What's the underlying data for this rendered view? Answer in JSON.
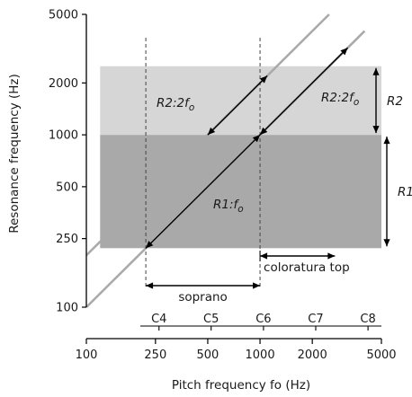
{
  "chart_data": {
    "type": "line",
    "xscale": "log",
    "yscale": "log",
    "xlim": [
      100,
      5000
    ],
    "ylim": [
      100,
      5000
    ],
    "xlabel": "Pitch frequency fo  (Hz)",
    "ylabel": "Resonance frequency  (Hz)",
    "x_ticks": [
      100,
      250,
      500,
      1000,
      2000,
      5000
    ],
    "y_ticks": [
      100,
      250,
      500,
      1000,
      2000,
      5000
    ],
    "notes": [
      {
        "label": "C4",
        "freq": 262
      },
      {
        "label": "C5",
        "freq": 523
      },
      {
        "label": "C6",
        "freq": 1047
      },
      {
        "label": "C7",
        "freq": 2093
      },
      {
        "label": "C8",
        "freq": 4186
      }
    ],
    "regions": [
      {
        "name": "R1",
        "y_range": [
          220,
          1000
        ],
        "x_range": [
          120,
          5000
        ],
        "color": "#a9a9a9"
      },
      {
        "name": "R2",
        "y_range": [
          1000,
          2500
        ],
        "x_range": [
          120,
          5000
        ],
        "color": "#d6d6d6"
      }
    ],
    "lines": [
      {
        "label_pre": "R1:f",
        "label_sub": "o",
        "multiplier": 1,
        "x_range": [
          100,
          4000
        ],
        "color": "#aaaaaa"
      },
      {
        "label_pre": "R2:2f",
        "label_sub": "o",
        "multiplier": 2,
        "x_range": [
          100,
          2500
        ],
        "color": "#aaaaaa"
      }
    ],
    "segments": [
      {
        "line": "R1:fo",
        "x_range": [
          220,
          1000
        ]
      },
      {
        "line": "R1:fo",
        "x_range": [
          1000,
          3200
        ]
      },
      {
        "line": "R2:2fo",
        "x_range": [
          500,
          1100
        ]
      }
    ],
    "vertical_markers": [
      {
        "x": 220,
        "style": "dashed"
      },
      {
        "x": 1000,
        "style": "dashed"
      }
    ],
    "ranges": [
      {
        "label": "soprano",
        "x_range": [
          220,
          1000
        ],
        "y_level": 140
      },
      {
        "label": "coloratura top",
        "x_range": [
          1000,
          2700
        ],
        "y_level": 185
      }
    ],
    "side_arrows": [
      {
        "label": "R2",
        "y_range": [
          1000,
          2500
        ]
      },
      {
        "label": "R1",
        "y_range": [
          220,
          1000
        ]
      }
    ]
  }
}
